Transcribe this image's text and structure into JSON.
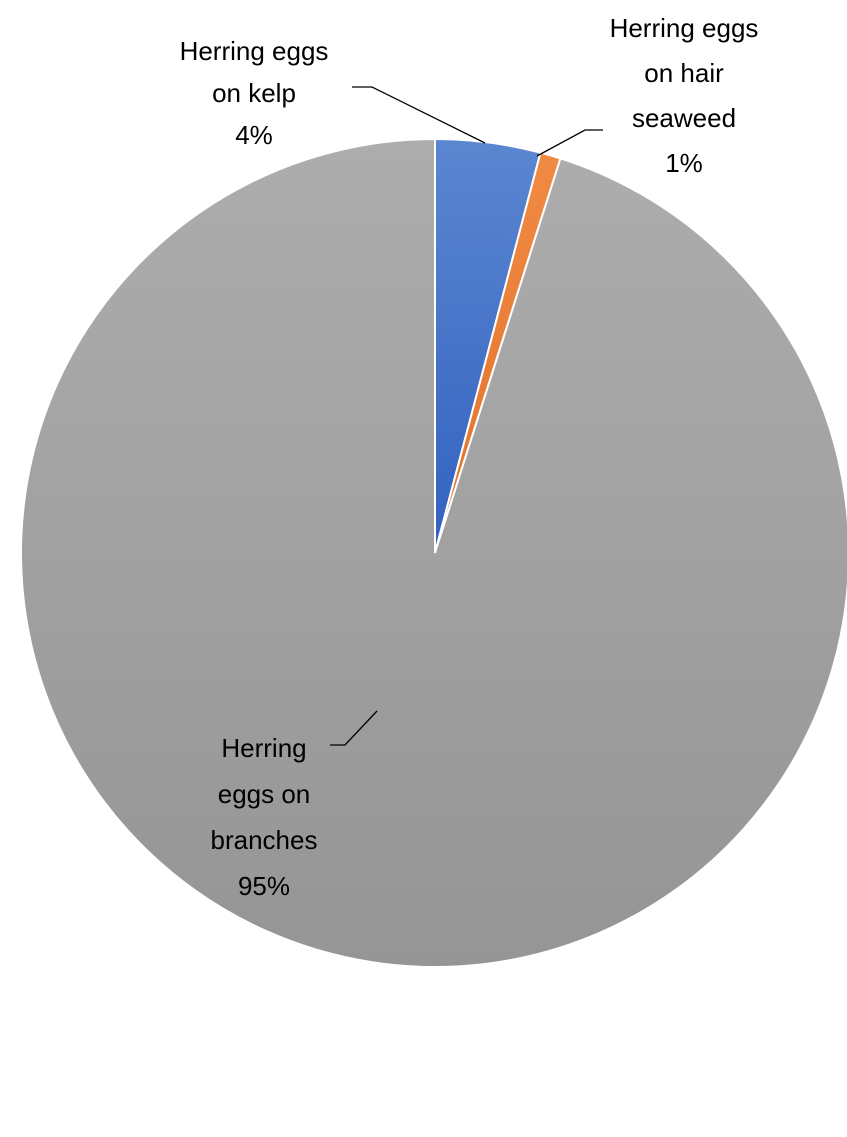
{
  "chart_data": {
    "type": "pie",
    "title": "",
    "categories": [
      "Herring eggs on kelp",
      "Herring eggs on hair seaweed",
      "Herring eggs on branches"
    ],
    "values": [
      4,
      1,
      95
    ],
    "exact_shares": [
      0.041,
      0.008,
      0.951
    ],
    "colors": [
      "#4472C4",
      "#ED7D31",
      "#A5A5A5"
    ],
    "start_angle_deg": 0,
    "direction": "clockwise",
    "legend": "none",
    "data_labels": [
      {
        "lines": [
          "Herring eggs",
          "on kelp",
          "4%"
        ]
      },
      {
        "lines": [
          "Herring eggs",
          "on hair",
          "seaweed",
          "1%"
        ]
      },
      {
        "lines": [
          "Herring",
          "eggs on",
          "branches",
          "95%"
        ]
      }
    ]
  }
}
